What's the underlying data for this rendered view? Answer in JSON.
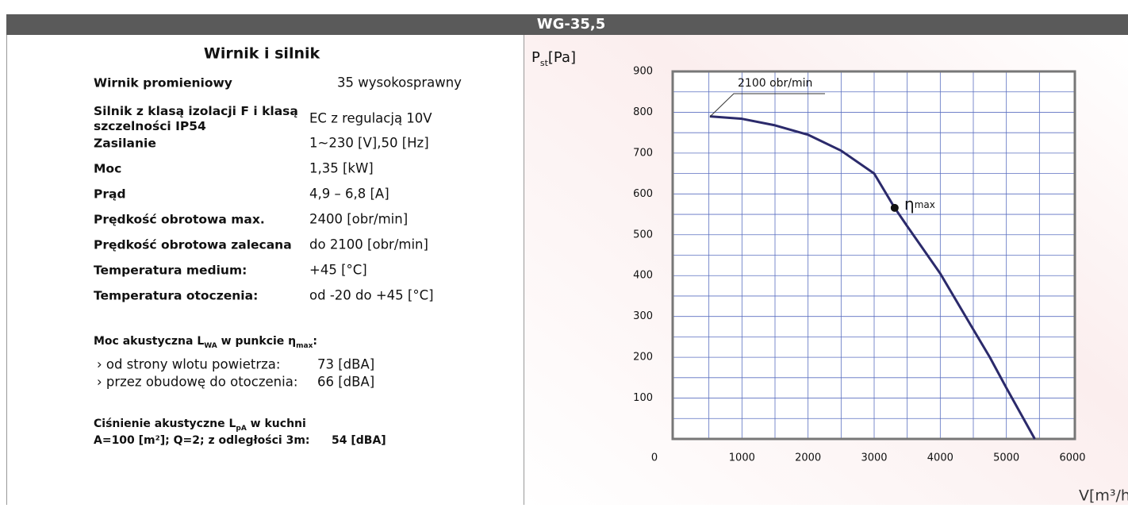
{
  "header": {
    "title": "WG-35,5"
  },
  "specs": {
    "title": "Wirnik i silnik",
    "rows": [
      {
        "label": [
          "Wirnik promieniowy"
        ],
        "value": "35 wysokosprawny"
      },
      {
        "label": [
          "Silnik z klasą izolacji F i klasą",
          "szczelności IP54"
        ],
        "value": "EC z regulacją 10V"
      },
      {
        "label": [
          "Zasilanie"
        ],
        "value": "1~230 [V],50 [Hz]"
      },
      {
        "label": [
          "Moc"
        ],
        "value": "1,35 [kW]"
      },
      {
        "label": [
          "Prąd"
        ],
        "value": "4,9 – 6,8 [A]"
      },
      {
        "label": [
          "Prędkość obrotowa max."
        ],
        "value": "2400 [obr/min]"
      },
      {
        "label": [
          "Prędkość obrotowa zalecana"
        ],
        "value": "do 2100 [obr/min]"
      },
      {
        "label": [
          "Temperatura medium:"
        ],
        "value": "+45 [°C]"
      },
      {
        "label": [
          "Temperatura otoczenia:"
        ],
        "value": "od -20 do +45 [°C]"
      }
    ]
  },
  "acoustic_power": {
    "heading": [
      "Moc akustyczna L",
      "WA",
      " w punkcie η",
      "max",
      ":"
    ],
    "items": [
      {
        "label": "› od strony wlotu powietrza:",
        "value": "73 [dBA]"
      },
      {
        "label": "› przez obudowę do otoczenia:",
        "value": "66 [dBA]"
      }
    ]
  },
  "acoustic_pressure": {
    "heading": [
      "Ciśnienie akustyczne L",
      "pA",
      " w kuchni"
    ],
    "label": "A=100 [m²]; Q=2; z odległości 3m:",
    "value": "54 [dBA]"
  },
  "chart_data": {
    "type": "line",
    "y_label": [
      "P",
      "st",
      "[Pa]"
    ],
    "x_label": "V[m³/h]",
    "x": [
      515,
      1000,
      1500,
      2000,
      2500,
      3000,
      3310,
      3500,
      4000,
      4500,
      4750,
      5000,
      5430
    ],
    "values": [
      790,
      784,
      768,
      745,
      706,
      650,
      566,
      521,
      405,
      268,
      200,
      125,
      0
    ],
    "color": "#2b2a6b",
    "curve_label": "2100 obr/min",
    "annotation": {
      "label": [
        "η",
        "max"
      ],
      "x": 3310,
      "y": 566
    },
    "xlim": [
      0,
      6000
    ],
    "ylim": [
      0,
      900
    ],
    "xticks": [
      0,
      1000,
      2000,
      3000,
      4000,
      5000,
      6000
    ],
    "yticks": [
      100,
      200,
      300,
      400,
      500,
      600,
      700,
      800,
      900
    ],
    "grid": true,
    "xgrid_step": 500,
    "ygrid_step": 50
  }
}
